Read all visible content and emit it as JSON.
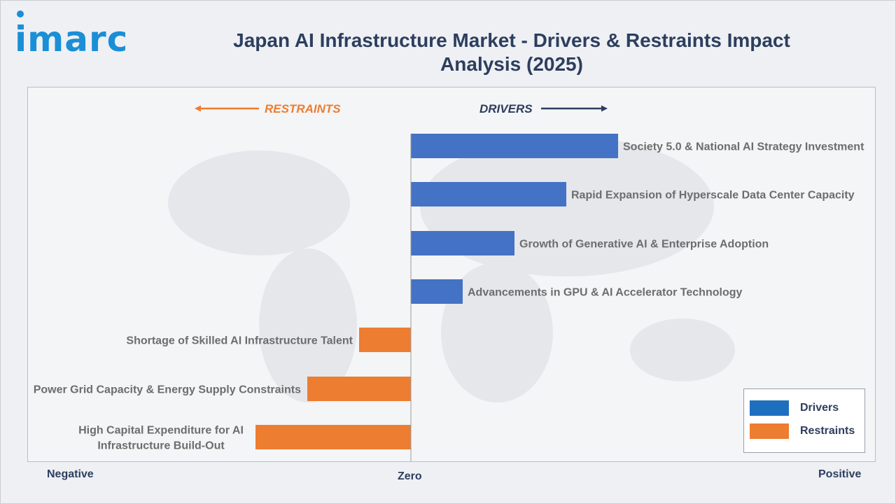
{
  "brand": {
    "logo_text": "imarc",
    "logo_color": "#1a8fd6"
  },
  "title": "Japan AI Infrastructure Market - Drivers & Restraints Impact Analysis (2025)",
  "chart_data": {
    "type": "bar",
    "orientation": "horizontal",
    "title": "Japan AI Infrastructure Market - Drivers & Restraints Impact Analysis (2025)",
    "direction_labels": {
      "left": "RESTRAINTS",
      "right": "DRIVERS"
    },
    "axis_labels": {
      "negative": "Negative",
      "zero": "Zero",
      "positive": "Positive"
    },
    "xlim": [
      -3,
      4.5
    ],
    "categories": [
      "Society 5.0 & National AI Strategy Investment",
      "Rapid Expansion of Hyperscale Data Center Capacity",
      "Growth of Generative AI & Enterprise Adoption",
      "Advancements in GPU & AI Accelerator Technology",
      "Shortage of Skilled AI Infrastructure Talent",
      "Power Grid Capacity & Energy Supply Constraints",
      "High Capital Expenditure for AI Infrastructure Build-Out"
    ],
    "label_lines": [
      [
        "Society 5.0 & National AI Strategy Investment"
      ],
      [
        "Rapid Expansion of Hyperscale Data Center Capacity"
      ],
      [
        "Growth of Generative AI & Enterprise Adoption"
      ],
      [
        "Advancements in GPU & AI Accelerator Technology"
      ],
      [
        "Shortage of Skilled AI Infrastructure Talent"
      ],
      [
        "Power Grid Capacity & Energy Supply Constraints"
      ],
      [
        "High Capital Expenditure for AI",
        "Infrastructure Build-Out"
      ]
    ],
    "values": [
      4,
      3,
      2,
      1,
      -1,
      -2,
      -3
    ],
    "series_type": [
      "Drivers",
      "Drivers",
      "Drivers",
      "Drivers",
      "Restraints",
      "Restraints",
      "Restraints"
    ],
    "colors": {
      "Drivers": "#4472c4",
      "Restraints": "#ed7d31"
    },
    "legend": {
      "placement": "bottom-right",
      "entries": [
        {
          "name": "Drivers",
          "color": "#1f6fbf"
        },
        {
          "name": "Restraints",
          "color": "#ed7d31"
        }
      ]
    },
    "grid": false
  }
}
